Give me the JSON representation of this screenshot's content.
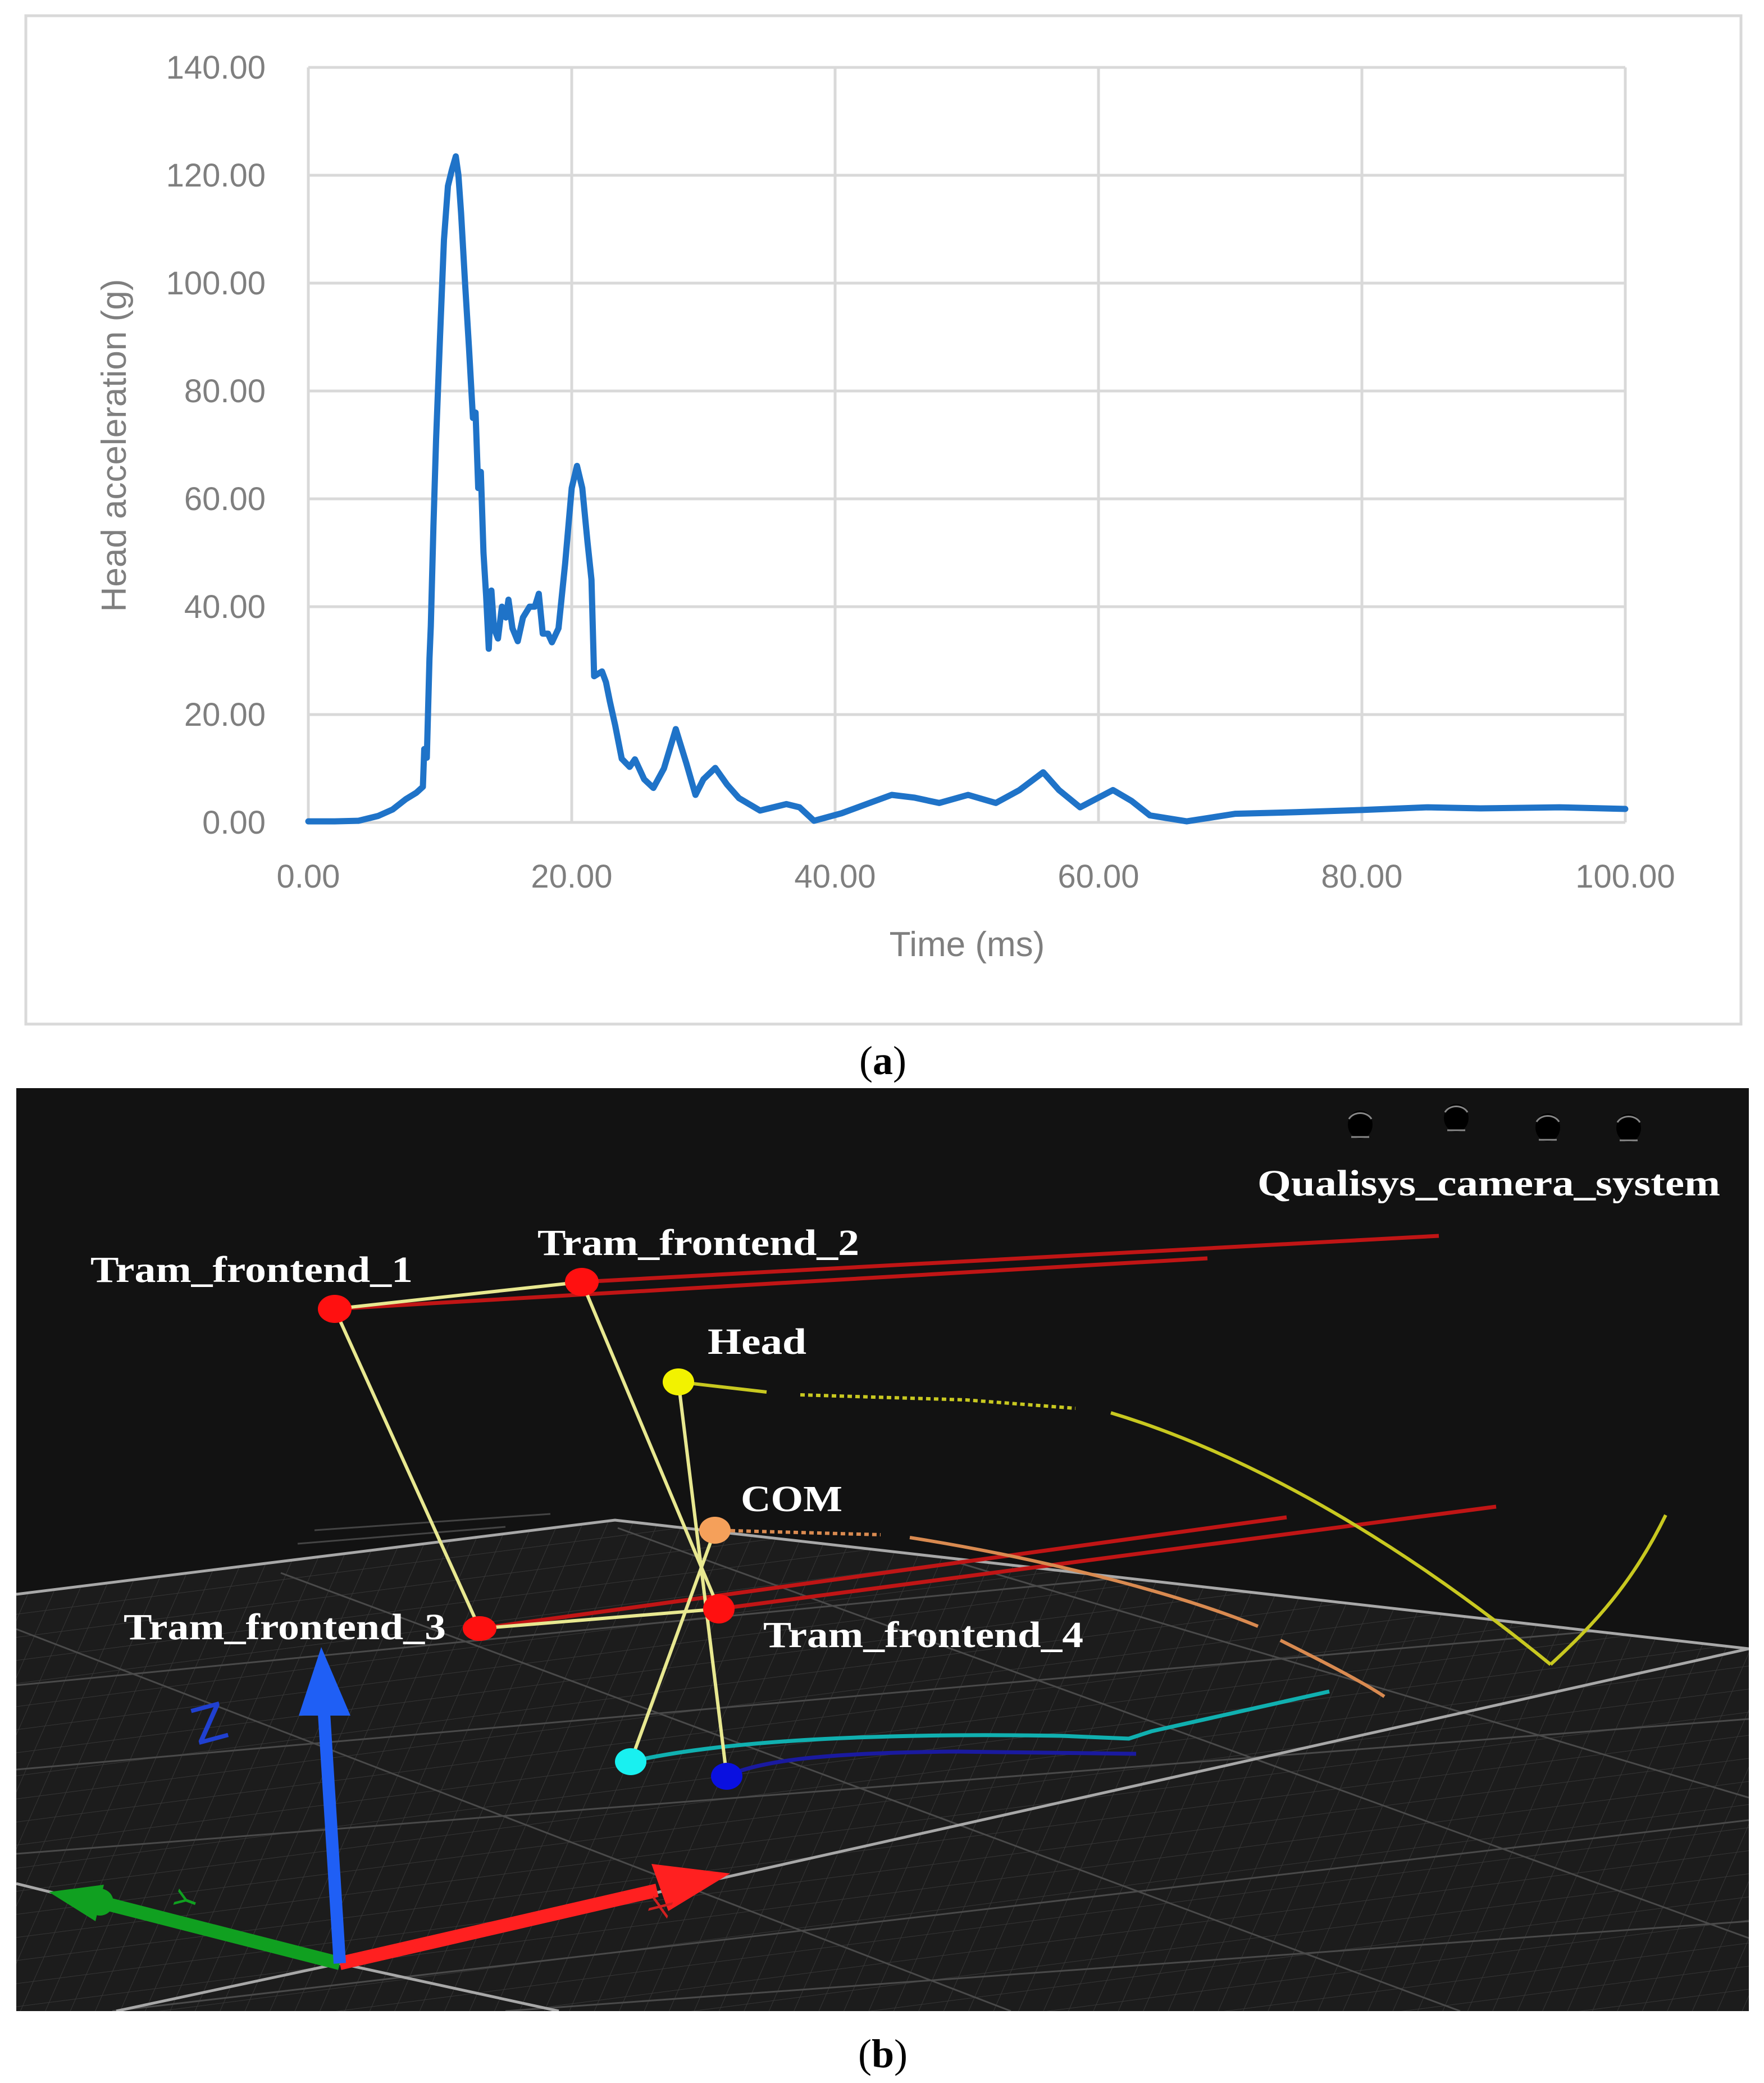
{
  "figure": {
    "panel_a": {
      "caption_open": "(",
      "caption_letter": "a",
      "caption_close": ")",
      "y_axis_title": "Head acceleration (g)",
      "x_axis_title": "Time (ms)",
      "y_ticks": [
        "140.00",
        "120.00",
        "100.00",
        "80.00",
        "60.00",
        "40.00",
        "20.00",
        "0.00"
      ],
      "x_ticks": [
        "0.00",
        "20.00",
        "40.00",
        "60.00",
        "80.00",
        "100.00"
      ],
      "colors": {
        "series": "#1f73c8",
        "grid": "#d9d9d9",
        "text": "#7f7f7f"
      }
    },
    "panel_b": {
      "caption_open": "(",
      "caption_letter": "b",
      "caption_close": ")",
      "labels": {
        "tram_frontend_1": "Tram_frontend_1",
        "tram_frontend_2": "Tram_frontend_2",
        "tram_frontend_3": "Tram_frontend_3",
        "tram_frontend_4": "Tram_frontend_4",
        "head": "Head",
        "com": "COM",
        "camera_system": "Qualisys_camera_system"
      },
      "axis_letters": {
        "x": "X",
        "y": "Y",
        "z": "Z"
      },
      "colors": {
        "background": "#121212",
        "tram_marker": "#ff1010",
        "head_marker": "#f2f200",
        "com_marker": "#f5a05a",
        "foot1_marker": "#19f0f0",
        "foot2_marker": "#0a10e0",
        "skeleton": "#e8e890",
        "x_axis": "#ff2020",
        "y_axis": "#10a020",
        "z_axis": "#1f5ff5"
      }
    }
  },
  "chart_data": {
    "type": "line",
    "title": "",
    "xlabel": "Time (ms)",
    "ylabel": "Head acceleration (g)",
    "xlim": [
      0,
      100
    ],
    "ylim": [
      0,
      140
    ],
    "x_ticks": [
      0,
      20,
      40,
      60,
      80,
      100
    ],
    "y_ticks": [
      0,
      20,
      40,
      60,
      80,
      100,
      120,
      140
    ],
    "grid": true,
    "legend": null,
    "series": [
      {
        "name": "Head acceleration",
        "color": "#1f73c8",
        "x": [
          0,
          2,
          3.8,
          5.3,
          6.4,
          7.4,
          8.2,
          8.7,
          8.8,
          9.0,
          9.2,
          9.3,
          9.5,
          9.7,
          10.0,
          10.3,
          10.6,
          10.9,
          11.2,
          11.4,
          11.6,
          11.9,
          12.2,
          12.5,
          12.7,
          12.9,
          13.1,
          13.3,
          13.5,
          13.7,
          13.9,
          14.1,
          14.4,
          14.7,
          15.0,
          15.2,
          15.5,
          15.9,
          16.3,
          16.8,
          17.2,
          17.5,
          17.8,
          18.2,
          18.5,
          19.0,
          19.5,
          20.0,
          20.4,
          20.8,
          21.2,
          21.5,
          21.7,
          22.3,
          22.6,
          22.9,
          23.3,
          23.8,
          24.4,
          24.8,
          25.5,
          26.2,
          27.0,
          27.9,
          28.7,
          29.4,
          30.0,
          30.9,
          31.8,
          32.7,
          34.3,
          36.3,
          37.3,
          38.4,
          40.5,
          42.5,
          44.3,
          46.0,
          47.9,
          50.1,
          52.2,
          54.0,
          55.8,
          57.0,
          58.6,
          61.1,
          62.5,
          63.9,
          66.7,
          70.4,
          75,
          80,
          85,
          89,
          95,
          100
        ],
        "y": [
          0.2,
          0.2,
          0.3,
          1.2,
          2.4,
          4.3,
          5.5,
          6.6,
          13.6,
          12,
          30.3,
          36.4,
          55,
          71,
          90,
          108,
          118,
          121,
          123.5,
          120,
          113,
          100,
          88,
          75,
          76,
          62,
          65,
          50,
          42,
          32.2,
          43,
          36,
          34.1,
          40,
          38,
          41.3,
          36,
          33.6,
          38,
          40,
          40,
          42.4,
          35,
          35,
          33.4,
          36,
          48,
          62,
          66.1,
          62,
          52,
          45,
          27.1,
          28,
          26,
          22.4,
          18,
          11.8,
          10.3,
          11.7,
          8,
          6.4,
          10,
          17.3,
          11,
          5.1,
          8,
          10.1,
          7,
          4.5,
          2.2,
          3.4,
          2.8,
          0.3,
          1.7,
          3.5,
          5.1,
          4.6,
          3.6,
          5.1,
          3.6,
          6,
          9.3,
          6,
          2.8,
          6.0,
          4,
          1.3,
          0.2,
          1.6,
          1.9,
          2.3,
          2.8,
          2.6,
          2.8,
          2.5
        ]
      }
    ]
  }
}
